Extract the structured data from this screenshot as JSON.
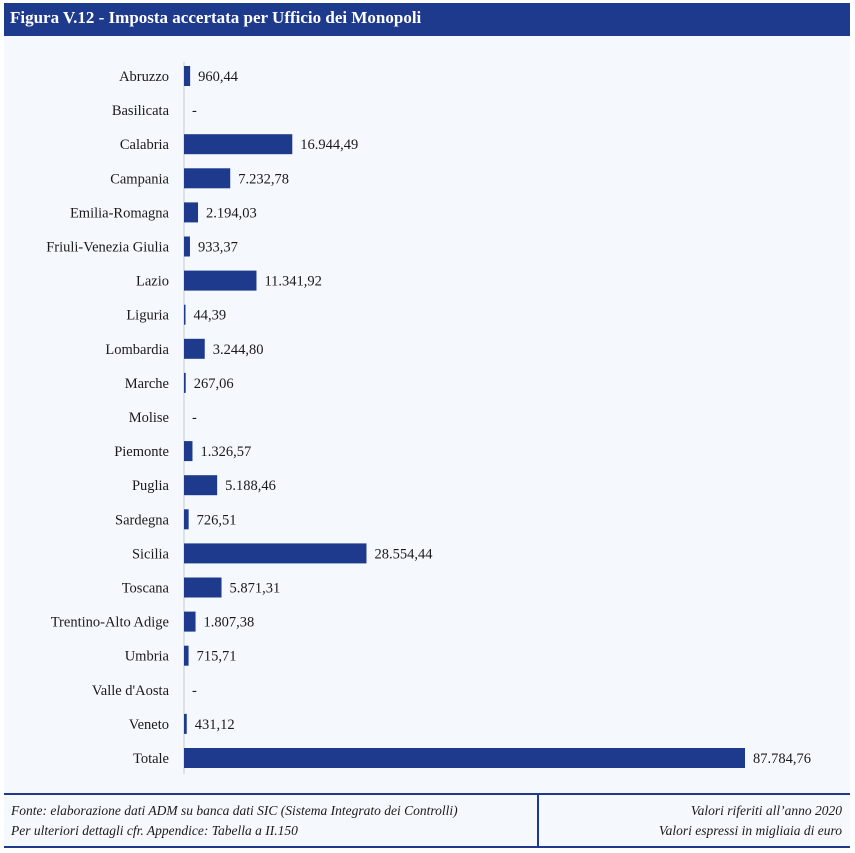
{
  "header": {
    "title": "Figura V.12 - Imposta accertata per Ufficio dei Monopoli"
  },
  "footer": {
    "source_line": "Fonte: elaborazione dati ADM su banca dati SIC (Sistema Integrato dei Controlli)",
    "detail_line": "Per ulteriori dettagli cfr. Appendice: Tabella a II.150",
    "year_note": "Valori riferiti all’anno 2020",
    "unit_note": "Valori espressi in migliaia di euro"
  },
  "colors": {
    "bar": "#1e3a8c",
    "header": "#1e3a8c",
    "background": "#f5f9fd"
  },
  "chart_data": {
    "type": "bar",
    "orientation": "horizontal",
    "title": "",
    "xlabel": "",
    "ylabel": "",
    "grid": false,
    "xlim": [
      0,
      87784.76
    ],
    "categories": [
      "Abruzzo",
      "Basilicata",
      "Calabria",
      "Campania",
      "Emilia-Romagna",
      "Friuli-Venezia Giulia",
      "Lazio",
      "Liguria",
      "Lombardia",
      "Marche",
      "Molise",
      "Piemonte",
      "Puglia",
      "Sardegna",
      "Sicilia",
      "Toscana",
      "Trentino-Alto Adige",
      "Umbria",
      "Valle d'Aosta",
      "Veneto",
      "Totale"
    ],
    "values": [
      960.44,
      0,
      16944.49,
      7232.78,
      2194.03,
      933.37,
      11341.92,
      44.39,
      3244.8,
      267.06,
      0,
      1326.57,
      5188.46,
      726.51,
      28554.44,
      5871.31,
      1807.38,
      715.71,
      0,
      431.12,
      87784.76
    ],
    "data_labels": [
      "960,44",
      "-",
      "16.944,49",
      "7.232,78",
      "2.194,03",
      "933,37",
      "11.341,92",
      "44,39",
      "3.244,80",
      "267,06",
      "-",
      "1.326,57",
      "5.188,46",
      "726,51",
      "28.554,44",
      "5.871,31",
      "1.807,38",
      "715,71",
      "-",
      "431,12",
      "87.784,76"
    ]
  }
}
